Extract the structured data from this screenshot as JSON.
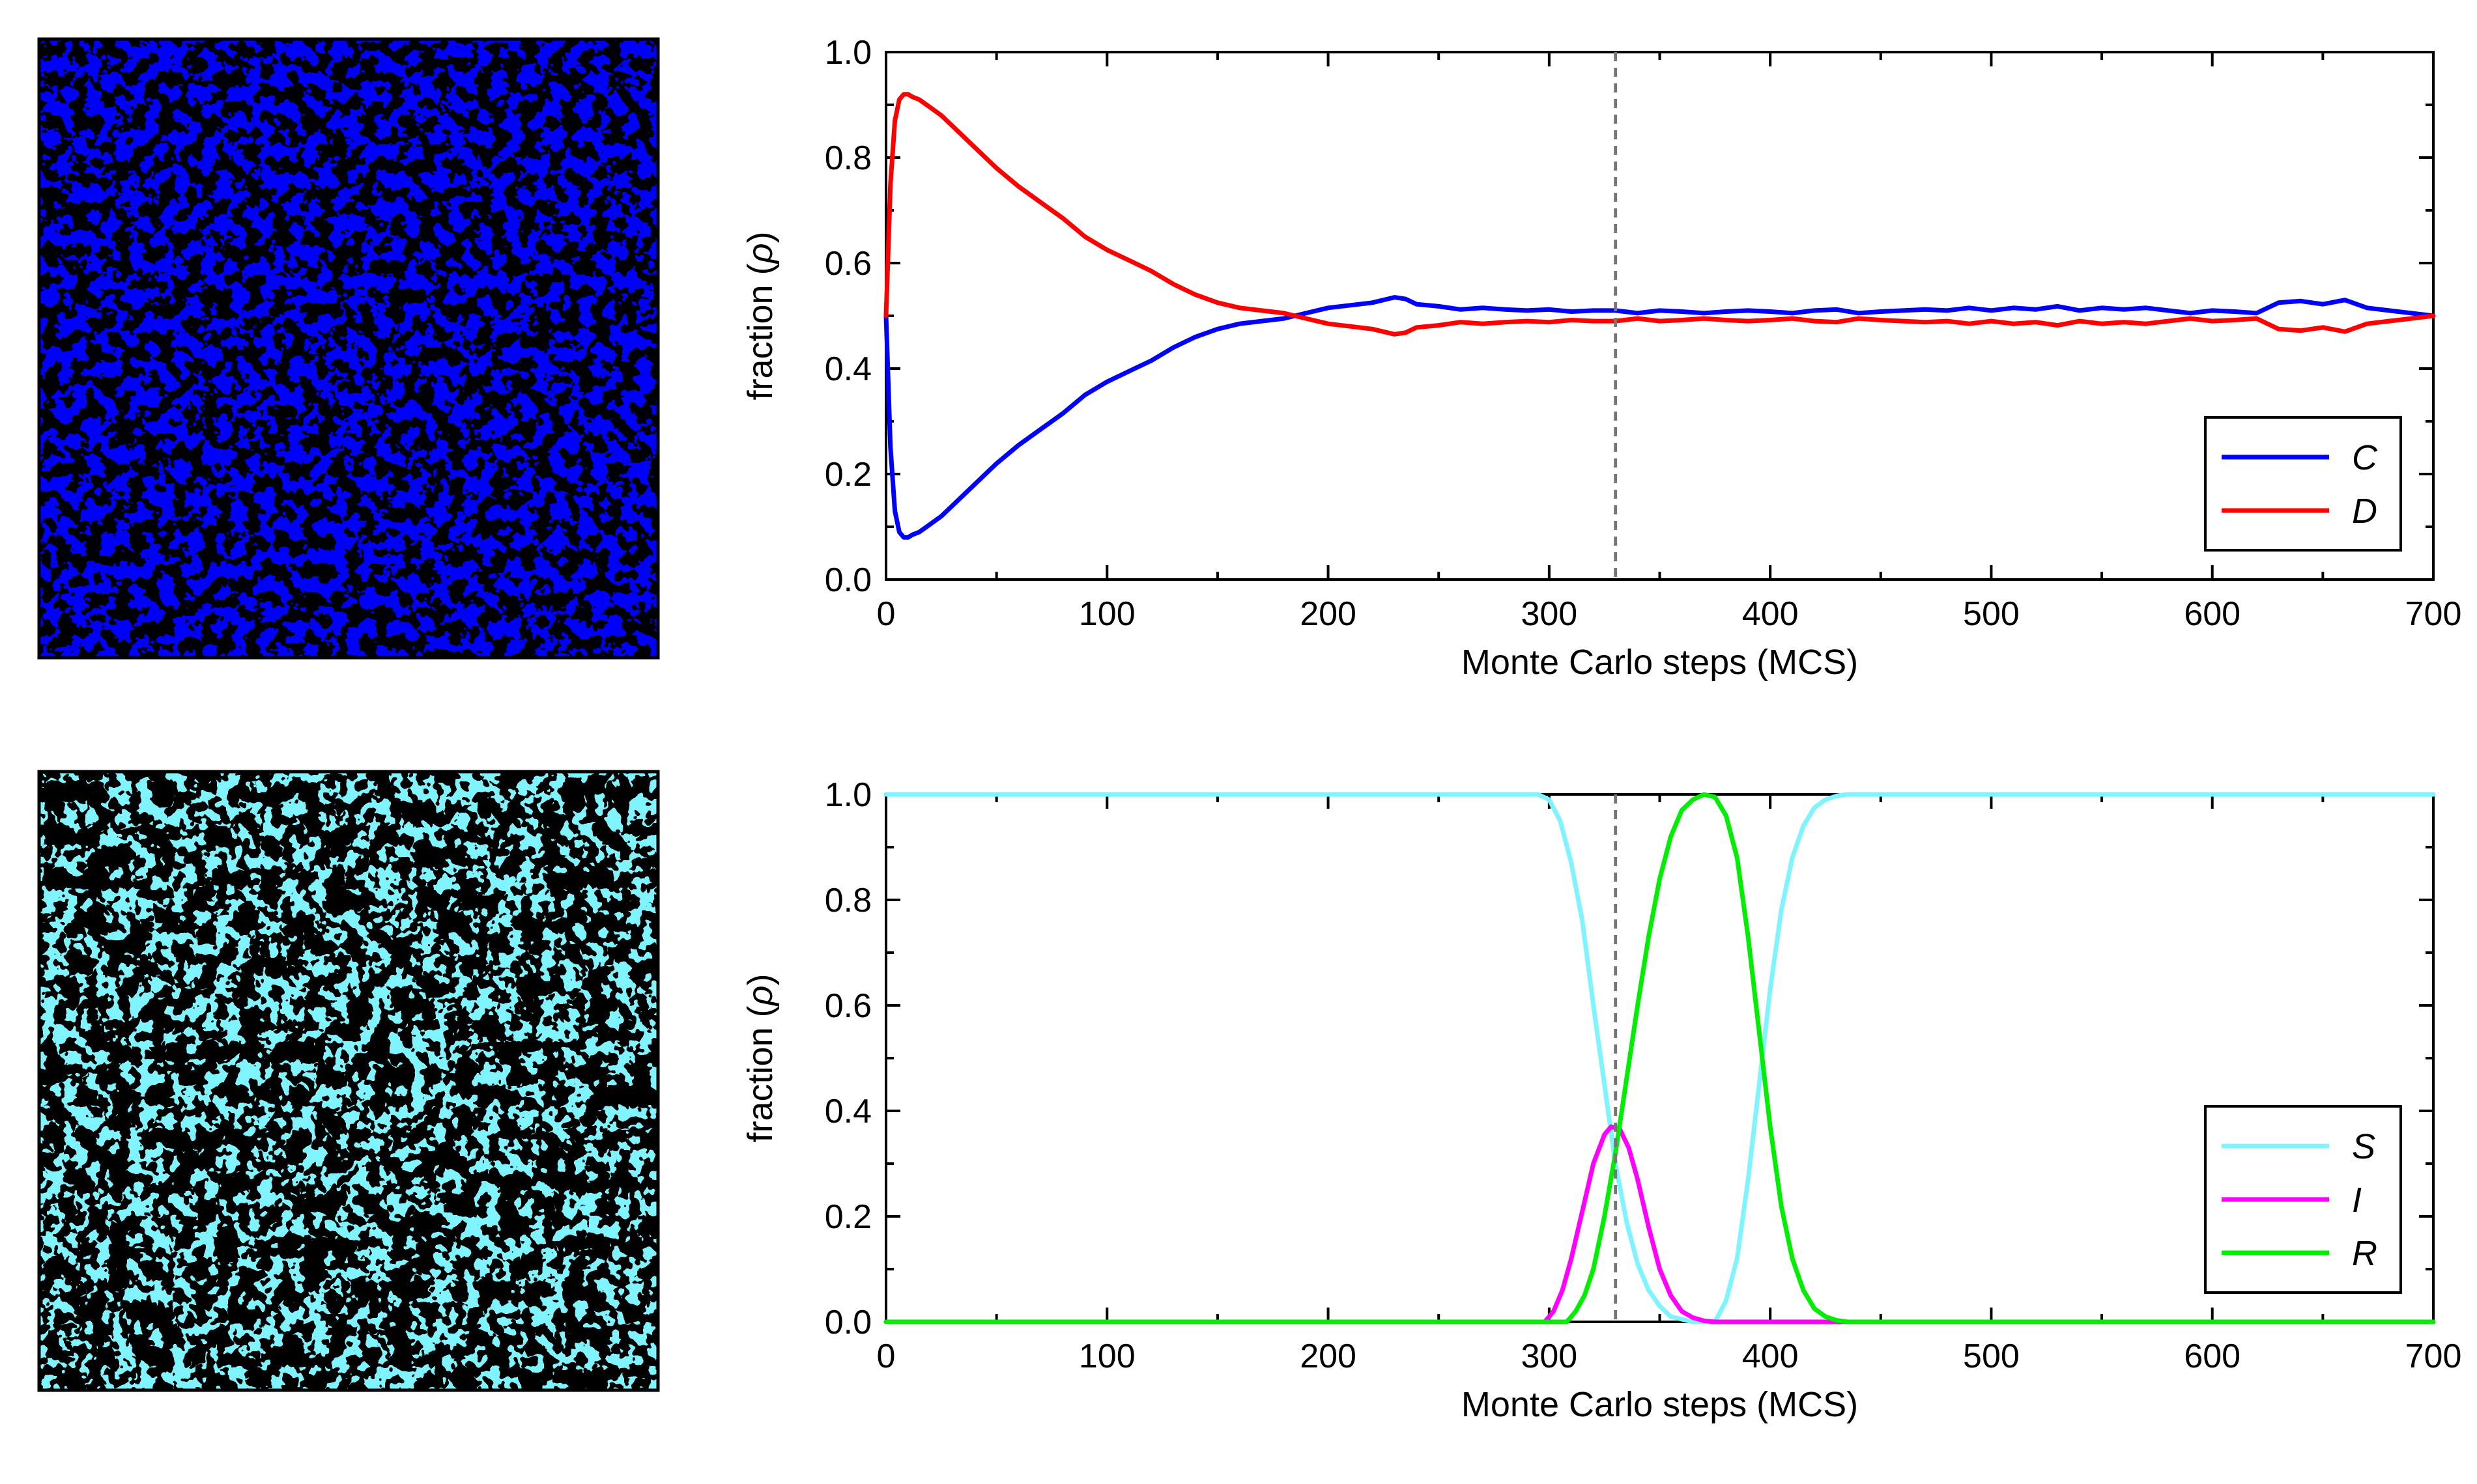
{
  "colors": {
    "C": "#0000ff",
    "D": "#ff0000",
    "S": "#7ff4ff",
    "I": "#ff00ff",
    "R": "#00ee00",
    "marker": "#777777"
  },
  "chart_data": [
    {
      "type": "heatmap",
      "description_label": "lattice snapshot C/D",
      "states": [
        "C",
        "D"
      ]
    },
    {
      "type": "line",
      "xlabel": "Monte Carlo steps (MCS)",
      "ylabel_prefix": "fraction (",
      "ylabel_symbol": "ρ",
      "ylabel_suffix": ")",
      "xlim": [
        0,
        700
      ],
      "ylim": [
        0,
        1
      ],
      "xticks": [
        "0",
        "100",
        "200",
        "300",
        "400",
        "500",
        "600",
        "700"
      ],
      "yticks": [
        "0.0",
        "0.2",
        "0.4",
        "0.6",
        "0.8",
        "1.0"
      ],
      "vline_x": 330,
      "legend_position": "bottom-right",
      "series": [
        {
          "name": "C",
          "x": [
            0,
            2,
            4,
            6,
            8,
            10,
            12,
            15,
            20,
            25,
            30,
            40,
            50,
            60,
            70,
            80,
            90,
            100,
            110,
            120,
            130,
            140,
            150,
            160,
            170,
            180,
            190,
            200,
            210,
            220,
            230,
            235,
            240,
            250,
            260,
            270,
            280,
            290,
            300,
            310,
            320,
            330,
            340,
            350,
            360,
            370,
            380,
            390,
            400,
            410,
            420,
            430,
            440,
            450,
            460,
            470,
            480,
            490,
            500,
            510,
            520,
            530,
            540,
            550,
            560,
            570,
            580,
            590,
            600,
            610,
            620,
            630,
            640,
            650,
            660,
            670,
            680,
            690,
            700
          ],
          "values": [
            0.5,
            0.25,
            0.13,
            0.09,
            0.08,
            0.08,
            0.085,
            0.09,
            0.105,
            0.12,
            0.14,
            0.18,
            0.22,
            0.255,
            0.285,
            0.315,
            0.35,
            0.375,
            0.395,
            0.415,
            0.44,
            0.46,
            0.475,
            0.485,
            0.49,
            0.495,
            0.505,
            0.515,
            0.52,
            0.525,
            0.535,
            0.532,
            0.522,
            0.518,
            0.512,
            0.515,
            0.512,
            0.51,
            0.512,
            0.508,
            0.51,
            0.51,
            0.505,
            0.51,
            0.508,
            0.505,
            0.508,
            0.51,
            0.508,
            0.505,
            0.51,
            0.512,
            0.505,
            0.508,
            0.51,
            0.512,
            0.51,
            0.515,
            0.51,
            0.515,
            0.512,
            0.518,
            0.51,
            0.515,
            0.512,
            0.515,
            0.51,
            0.505,
            0.51,
            0.508,
            0.505,
            0.525,
            0.528,
            0.522,
            0.53,
            0.515,
            0.51,
            0.505,
            0.5
          ]
        },
        {
          "name": "D",
          "x": [
            0,
            2,
            4,
            6,
            8,
            10,
            12,
            15,
            20,
            25,
            30,
            40,
            50,
            60,
            70,
            80,
            90,
            100,
            110,
            120,
            130,
            140,
            150,
            160,
            170,
            180,
            190,
            200,
            210,
            220,
            230,
            235,
            240,
            250,
            260,
            270,
            280,
            290,
            300,
            310,
            320,
            330,
            340,
            350,
            360,
            370,
            380,
            390,
            400,
            410,
            420,
            430,
            440,
            450,
            460,
            470,
            480,
            490,
            500,
            510,
            520,
            530,
            540,
            550,
            560,
            570,
            580,
            590,
            600,
            610,
            620,
            630,
            640,
            650,
            660,
            670,
            680,
            690,
            700
          ],
          "values": [
            0.5,
            0.75,
            0.87,
            0.91,
            0.92,
            0.92,
            0.915,
            0.91,
            0.895,
            0.88,
            0.86,
            0.82,
            0.78,
            0.745,
            0.715,
            0.685,
            0.65,
            0.625,
            0.605,
            0.585,
            0.56,
            0.54,
            0.525,
            0.515,
            0.51,
            0.505,
            0.495,
            0.485,
            0.48,
            0.475,
            0.465,
            0.468,
            0.478,
            0.482,
            0.488,
            0.485,
            0.488,
            0.49,
            0.488,
            0.492,
            0.49,
            0.49,
            0.495,
            0.49,
            0.492,
            0.495,
            0.492,
            0.49,
            0.492,
            0.495,
            0.49,
            0.488,
            0.495,
            0.492,
            0.49,
            0.488,
            0.49,
            0.485,
            0.49,
            0.485,
            0.488,
            0.482,
            0.49,
            0.485,
            0.488,
            0.485,
            0.49,
            0.495,
            0.49,
            0.492,
            0.495,
            0.475,
            0.472,
            0.478,
            0.47,
            0.485,
            0.49,
            0.495,
            0.5
          ]
        }
      ]
    },
    {
      "type": "heatmap",
      "description_label": "lattice snapshot S/I/R",
      "states": [
        "S",
        "I",
        "R"
      ]
    },
    {
      "type": "line",
      "xlabel": "Monte Carlo steps (MCS)",
      "ylabel_prefix": "fraction (",
      "ylabel_symbol": "ρ",
      "ylabel_suffix": ")",
      "xlim": [
        0,
        700
      ],
      "ylim": [
        0,
        1
      ],
      "xticks": [
        "0",
        "100",
        "200",
        "300",
        "400",
        "500",
        "600",
        "700"
      ],
      "yticks": [
        "0.0",
        "0.2",
        "0.4",
        "0.6",
        "0.8",
        "1.0"
      ],
      "vline_x": 330,
      "legend_position": "bottom-right",
      "series": [
        {
          "name": "S",
          "x": [
            0,
            295,
            300,
            305,
            310,
            315,
            320,
            325,
            330,
            335,
            340,
            345,
            350,
            355,
            360,
            365,
            370,
            375,
            380,
            385,
            390,
            395,
            400,
            405,
            410,
            415,
            420,
            425,
            430,
            435,
            440,
            700
          ],
          "values": [
            1.0,
            1.0,
            0.99,
            0.95,
            0.87,
            0.76,
            0.6,
            0.45,
            0.3,
            0.19,
            0.11,
            0.06,
            0.03,
            0.01,
            0.005,
            0.0,
            0.0,
            0.0,
            0.04,
            0.12,
            0.27,
            0.45,
            0.63,
            0.78,
            0.88,
            0.94,
            0.975,
            0.99,
            0.997,
            1.0,
            1.0,
            1.0
          ]
        },
        {
          "name": "I",
          "x": [
            0,
            298,
            302,
            306,
            310,
            315,
            320,
            325,
            328,
            332,
            336,
            340,
            345,
            350,
            355,
            360,
            365,
            370,
            375,
            700
          ],
          "values": [
            0.0,
            0.0,
            0.02,
            0.06,
            0.12,
            0.21,
            0.3,
            0.355,
            0.37,
            0.365,
            0.33,
            0.27,
            0.18,
            0.1,
            0.05,
            0.02,
            0.008,
            0.002,
            0.0,
            0.0
          ]
        },
        {
          "name": "R",
          "x": [
            0,
            308,
            312,
            316,
            320,
            325,
            330,
            335,
            340,
            345,
            350,
            355,
            360,
            365,
            370,
            375,
            380,
            385,
            390,
            395,
            400,
            405,
            410,
            415,
            420,
            425,
            430,
            435,
            440,
            700
          ],
          "values": [
            0.0,
            0.0,
            0.02,
            0.05,
            0.1,
            0.2,
            0.32,
            0.46,
            0.6,
            0.73,
            0.84,
            0.92,
            0.97,
            0.99,
            1.0,
            0.995,
            0.96,
            0.88,
            0.73,
            0.55,
            0.37,
            0.22,
            0.12,
            0.06,
            0.025,
            0.01,
            0.003,
            0.0,
            0.0,
            0.0
          ]
        }
      ]
    }
  ]
}
